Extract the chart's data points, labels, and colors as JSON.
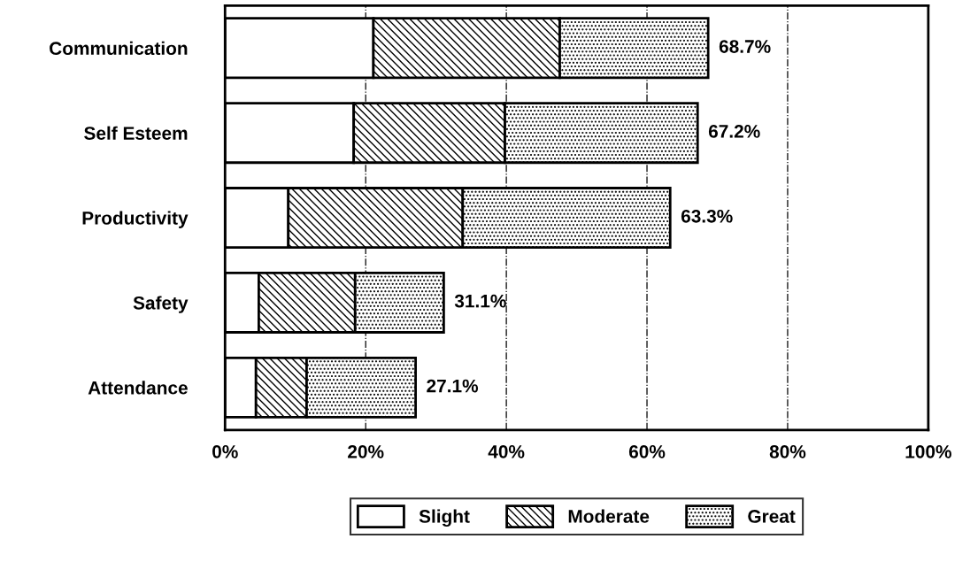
{
  "chart_data": {
    "type": "bar",
    "orientation": "horizontal",
    "stacked": true,
    "categories": [
      "Communication",
      "Self Esteem",
      "Productivity",
      "Safety",
      "Attendance"
    ],
    "series": [
      {
        "name": "Slight",
        "color": "#ffffff",
        "values": [
          21.1,
          18.3,
          9.0,
          4.8,
          4.4
        ]
      },
      {
        "name": "Moderate",
        "color": "#000000",
        "values": [
          26.5,
          21.5,
          24.8,
          13.7,
          7.2
        ]
      },
      {
        "name": "Great",
        "color": "#000000",
        "values": [
          21.1,
          27.4,
          29.5,
          12.6,
          15.5
        ]
      }
    ],
    "totals": [
      "68.7%",
      "67.2%",
      "63.3%",
      "31.1%",
      "27.1%"
    ],
    "xlim": [
      0,
      100
    ],
    "xticks": [
      {
        "value": 0,
        "label": "0%"
      },
      {
        "value": 20,
        "label": "20%"
      },
      {
        "value": 40,
        "label": "40%"
      },
      {
        "value": 60,
        "label": "60%"
      },
      {
        "value": 80,
        "label": "80%"
      },
      {
        "value": 100,
        "label": "100%"
      }
    ],
    "grid": "x",
    "legend": "bottom"
  }
}
